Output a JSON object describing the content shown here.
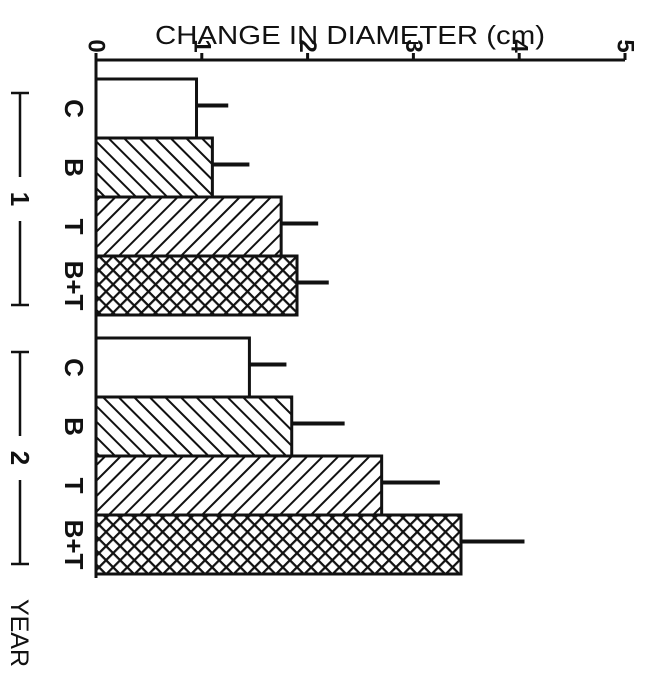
{
  "chart_data": {
    "type": "bar",
    "orientation": "horizontal",
    "title": "",
    "xlabel": "CHANGE IN DIAMETER (cm)",
    "ylabel": "YEAR",
    "xlim": [
      0,
      5
    ],
    "xticks": [
      "0",
      "1",
      "2",
      "3",
      "4",
      "5"
    ],
    "groups": [
      {
        "label": "1",
        "categories": [
          "C",
          "B",
          "T",
          "B+T"
        ],
        "values": [
          0.95,
          1.1,
          1.75,
          1.9
        ],
        "errors": [
          0.3,
          0.35,
          0.35,
          0.3
        ]
      },
      {
        "label": "2",
        "categories": [
          "C",
          "B",
          "T",
          "B+T"
        ],
        "values": [
          1.45,
          1.85,
          2.7,
          3.45
        ],
        "errors": [
          0.35,
          0.5,
          0.55,
          0.6
        ]
      }
    ],
    "patterns": [
      "none",
      "diagonal-up",
      "diagonal-down",
      "crosshatch"
    ],
    "bar_fill": "#ffffff",
    "ink_color": "#111111"
  }
}
